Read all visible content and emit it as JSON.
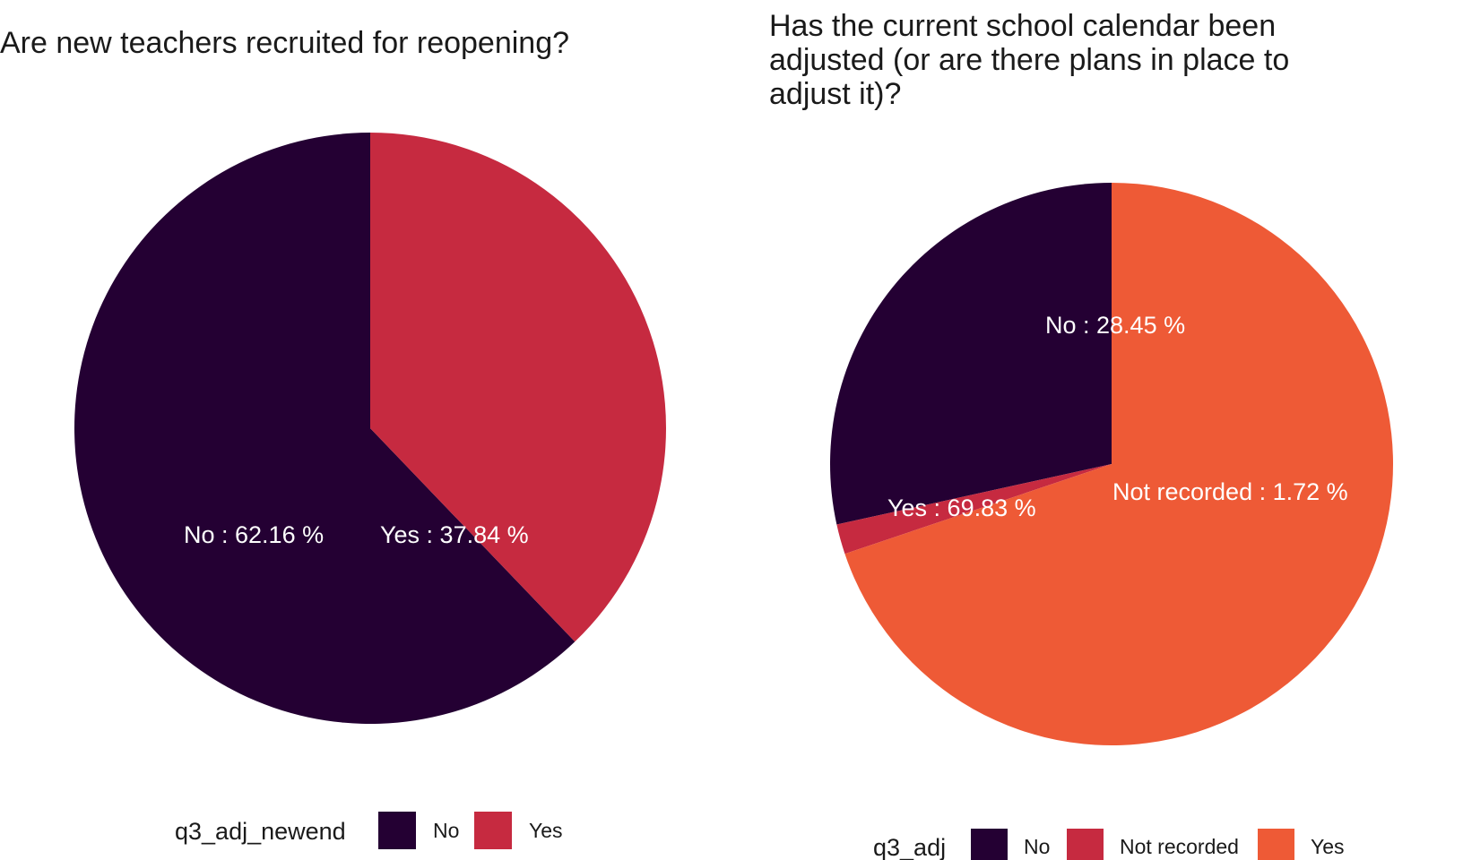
{
  "chart_data": [
    {
      "type": "pie",
      "title": "Are new teachers recruited for reopening?",
      "categories": [
        "No",
        "Yes"
      ],
      "values": [
        62.16,
        37.84
      ],
      "labels": [
        "No :  62.16  %",
        "Yes :  37.84  %"
      ],
      "colors": [
        "#240033",
        "#C62A40"
      ],
      "legend": {
        "title": "q3_adj_newend",
        "entries": [
          "No",
          "Yes"
        ],
        "placement": "bottom"
      }
    },
    {
      "type": "pie",
      "title_lines": [
        "Has the current school calendar been",
        "adjusted (or are there plans in place to",
        "adjust it)?"
      ],
      "categories": [
        "No",
        "Not recorded",
        "Yes"
      ],
      "values": [
        28.45,
        1.72,
        69.83
      ],
      "labels": [
        "No :  28.45  %",
        "Yes :  69.83  %",
        "Not recorded :  1.72  %"
      ],
      "colors": [
        "#240033",
        "#C62A40",
        "#EE5A36"
      ],
      "legend": {
        "title": "q3_adj",
        "entries": [
          "No",
          "Not recorded",
          "Yes"
        ],
        "placement": "bottom"
      }
    }
  ]
}
